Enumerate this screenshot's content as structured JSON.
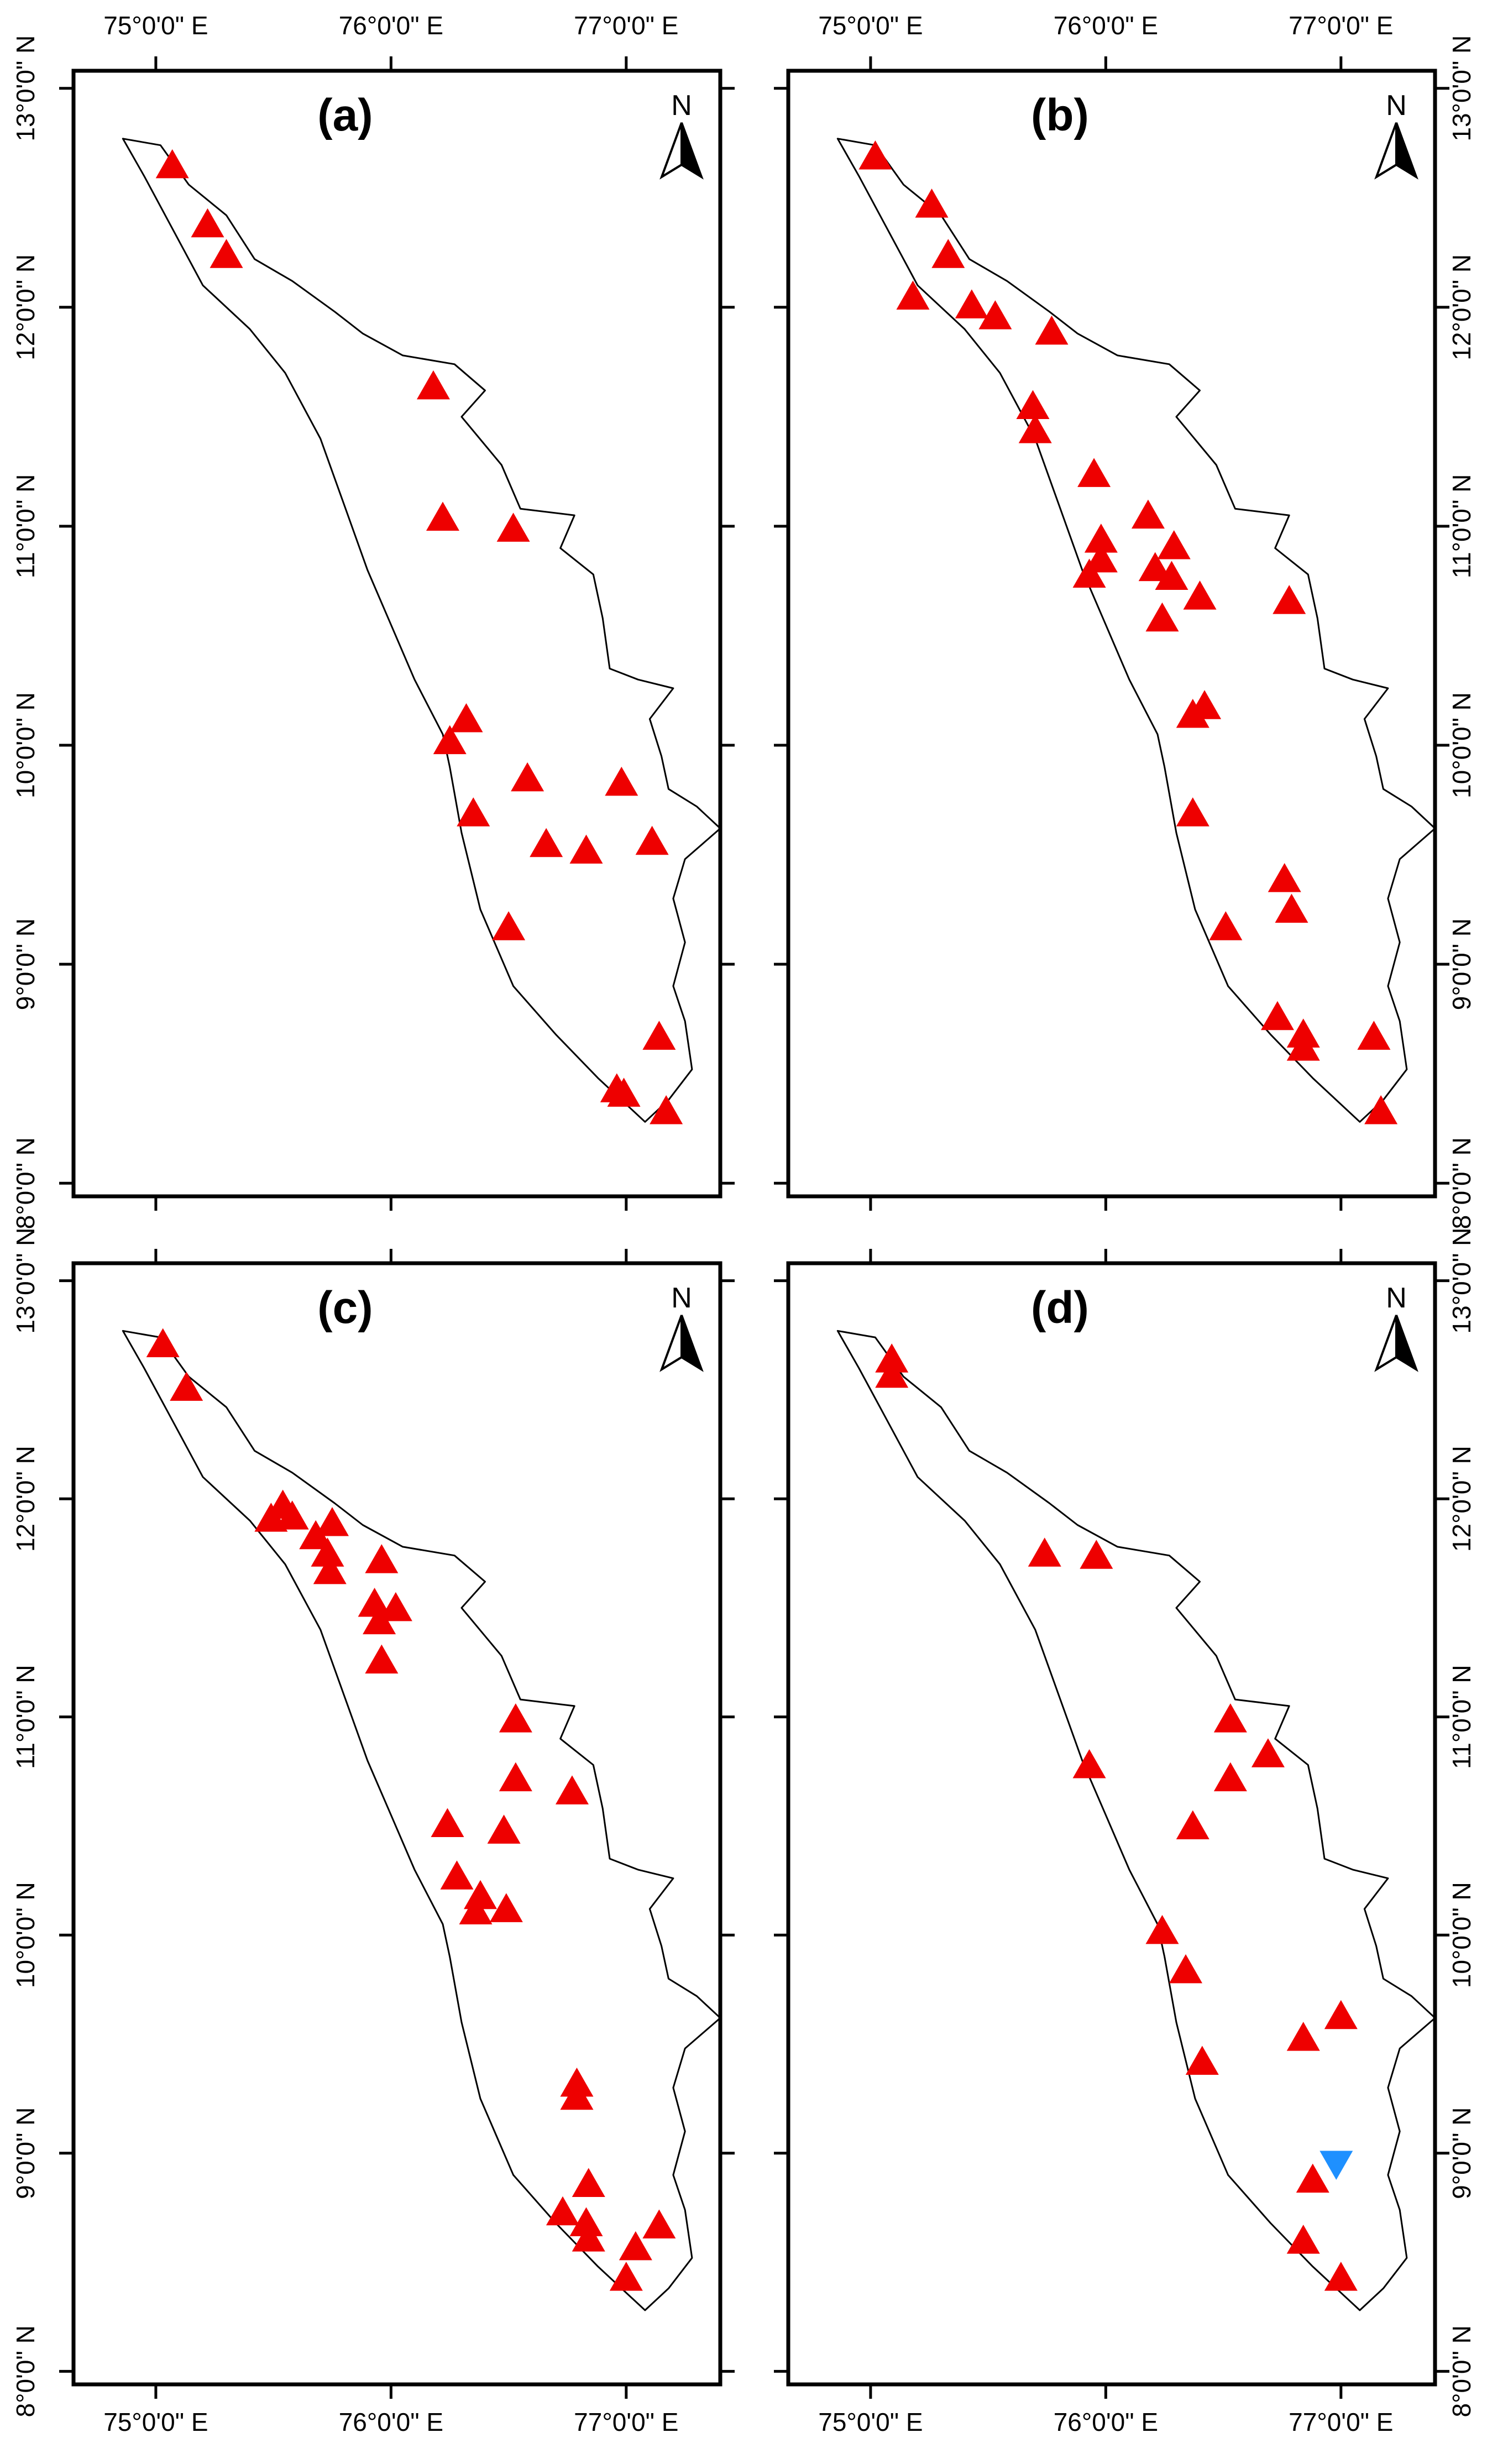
{
  "colors": {
    "trend_up": "#ee0000",
    "trend_down": "#1e90ff",
    "outline": "#000000",
    "background": "#ffffff"
  },
  "north_arrow": {
    "letter": "N",
    "icon": "north-arrow-icon"
  },
  "axes": {
    "x_ticks": [
      {
        "value": 75,
        "label": "75°0'0\" E"
      },
      {
        "value": 76,
        "label": "76°0'0\" E"
      },
      {
        "value": 77,
        "label": "77°0'0\" E"
      }
    ],
    "y_ticks": [
      {
        "value": 8,
        "label": "8°0'0\" N"
      },
      {
        "value": 9,
        "label": "9°0'0\" N"
      },
      {
        "value": 10,
        "label": "10°0'0\" N"
      },
      {
        "value": 11,
        "label": "11°0'0\" N"
      },
      {
        "value": 12,
        "label": "12°0'0\" N"
      },
      {
        "value": 13,
        "label": "13°0'0\" N"
      }
    ],
    "xlim": [
      74.65,
      77.4
    ],
    "ylim": [
      7.94,
      13.08
    ]
  },
  "boundary": {
    "name": "state-boundary-outline",
    "lonlat": [
      [
        74.86,
        12.77
      ],
      [
        75.02,
        12.74
      ],
      [
        75.14,
        12.56
      ],
      [
        75.3,
        12.42
      ],
      [
        75.42,
        12.22
      ],
      [
        75.58,
        12.12
      ],
      [
        75.76,
        11.98
      ],
      [
        75.88,
        11.88
      ],
      [
        76.05,
        11.78
      ],
      [
        76.27,
        11.74
      ],
      [
        76.4,
        11.62
      ],
      [
        76.3,
        11.5
      ],
      [
        76.47,
        11.28
      ],
      [
        76.55,
        11.08
      ],
      [
        76.78,
        11.05
      ],
      [
        76.72,
        10.9
      ],
      [
        76.86,
        10.78
      ],
      [
        76.9,
        10.58
      ],
      [
        76.93,
        10.35
      ],
      [
        77.05,
        10.3
      ],
      [
        77.2,
        10.26
      ],
      [
        77.1,
        10.12
      ],
      [
        77.15,
        9.95
      ],
      [
        77.18,
        9.8
      ],
      [
        77.3,
        9.72
      ],
      [
        77.4,
        9.62
      ],
      [
        77.25,
        9.48
      ],
      [
        77.2,
        9.3
      ],
      [
        77.25,
        9.1
      ],
      [
        77.2,
        8.9
      ],
      [
        77.25,
        8.74
      ],
      [
        77.28,
        8.52
      ],
      [
        77.18,
        8.38
      ],
      [
        77.08,
        8.28
      ],
      [
        76.88,
        8.48
      ],
      [
        76.7,
        8.68
      ],
      [
        76.52,
        8.9
      ],
      [
        76.38,
        9.25
      ],
      [
        76.3,
        9.6
      ],
      [
        76.25,
        9.9
      ],
      [
        76.22,
        10.05
      ],
      [
        76.1,
        10.3
      ],
      [
        76.0,
        10.55
      ],
      [
        75.9,
        10.8
      ],
      [
        75.8,
        11.1
      ],
      [
        75.7,
        11.4
      ],
      [
        75.55,
        11.7
      ],
      [
        75.4,
        11.9
      ],
      [
        75.2,
        12.1
      ],
      [
        75.05,
        12.4
      ],
      [
        74.95,
        12.6
      ],
      [
        74.86,
        12.77
      ]
    ]
  },
  "panels": [
    {
      "label": "(a)",
      "stations": [
        {
          "lon": 75.07,
          "lat": 12.65,
          "trend": "up"
        },
        {
          "lon": 75.22,
          "lat": 12.38,
          "trend": "up"
        },
        {
          "lon": 75.3,
          "lat": 12.24,
          "trend": "up"
        },
        {
          "lon": 76.18,
          "lat": 11.64,
          "trend": "up"
        },
        {
          "lon": 76.22,
          "lat": 11.04,
          "trend": "up"
        },
        {
          "lon": 76.52,
          "lat": 10.99,
          "trend": "up"
        },
        {
          "lon": 76.32,
          "lat": 10.12,
          "trend": "up"
        },
        {
          "lon": 76.25,
          "lat": 10.02,
          "trend": "up"
        },
        {
          "lon": 76.58,
          "lat": 9.85,
          "trend": "up"
        },
        {
          "lon": 76.98,
          "lat": 9.83,
          "trend": "up"
        },
        {
          "lon": 76.35,
          "lat": 9.69,
          "trend": "up"
        },
        {
          "lon": 76.66,
          "lat": 9.55,
          "trend": "up"
        },
        {
          "lon": 76.83,
          "lat": 9.52,
          "trend": "up"
        },
        {
          "lon": 77.11,
          "lat": 9.56,
          "trend": "up"
        },
        {
          "lon": 76.5,
          "lat": 9.17,
          "trend": "up"
        },
        {
          "lon": 77.14,
          "lat": 8.67,
          "trend": "up"
        },
        {
          "lon": 76.96,
          "lat": 8.43,
          "trend": "up"
        },
        {
          "lon": 76.99,
          "lat": 8.41,
          "trend": "up"
        },
        {
          "lon": 77.17,
          "lat": 8.33,
          "trend": "up"
        }
      ]
    },
    {
      "label": "(b)",
      "stations": [
        {
          "lon": 75.02,
          "lat": 12.69,
          "trend": "up"
        },
        {
          "lon": 75.26,
          "lat": 12.47,
          "trend": "up"
        },
        {
          "lon": 75.33,
          "lat": 12.24,
          "trend": "up"
        },
        {
          "lon": 75.18,
          "lat": 12.05,
          "trend": "up"
        },
        {
          "lon": 75.43,
          "lat": 12.01,
          "trend": "up"
        },
        {
          "lon": 75.53,
          "lat": 11.96,
          "trend": "up"
        },
        {
          "lon": 75.77,
          "lat": 11.89,
          "trend": "up"
        },
        {
          "lon": 75.69,
          "lat": 11.55,
          "trend": "up"
        },
        {
          "lon": 75.7,
          "lat": 11.44,
          "trend": "up"
        },
        {
          "lon": 75.95,
          "lat": 11.24,
          "trend": "up"
        },
        {
          "lon": 75.98,
          "lat": 10.94,
          "trend": "up"
        },
        {
          "lon": 75.98,
          "lat": 10.85,
          "trend": "up"
        },
        {
          "lon": 75.93,
          "lat": 10.78,
          "trend": "up"
        },
        {
          "lon": 76.18,
          "lat": 11.05,
          "trend": "up"
        },
        {
          "lon": 76.29,
          "lat": 10.91,
          "trend": "up"
        },
        {
          "lon": 76.21,
          "lat": 10.81,
          "trend": "up"
        },
        {
          "lon": 76.28,
          "lat": 10.77,
          "trend": "up"
        },
        {
          "lon": 76.4,
          "lat": 10.68,
          "trend": "up"
        },
        {
          "lon": 76.24,
          "lat": 10.58,
          "trend": "up"
        },
        {
          "lon": 76.78,
          "lat": 10.66,
          "trend": "up"
        },
        {
          "lon": 76.42,
          "lat": 10.18,
          "trend": "up"
        },
        {
          "lon": 76.37,
          "lat": 10.14,
          "trend": "up"
        },
        {
          "lon": 76.37,
          "lat": 9.69,
          "trend": "up"
        },
        {
          "lon": 76.76,
          "lat": 9.39,
          "trend": "up"
        },
        {
          "lon": 76.79,
          "lat": 9.25,
          "trend": "up"
        },
        {
          "lon": 76.51,
          "lat": 9.17,
          "trend": "up"
        },
        {
          "lon": 76.73,
          "lat": 8.76,
          "trend": "up"
        },
        {
          "lon": 76.84,
          "lat": 8.68,
          "trend": "up"
        },
        {
          "lon": 76.84,
          "lat": 8.62,
          "trend": "up"
        },
        {
          "lon": 77.14,
          "lat": 8.67,
          "trend": "up"
        },
        {
          "lon": 77.17,
          "lat": 8.33,
          "trend": "up"
        }
      ]
    },
    {
      "label": "(c)",
      "stations": [
        {
          "lon": 75.03,
          "lat": 12.71,
          "trend": "up"
        },
        {
          "lon": 75.13,
          "lat": 12.51,
          "trend": "up"
        },
        {
          "lon": 75.49,
          "lat": 11.91,
          "trend": "up"
        },
        {
          "lon": 75.54,
          "lat": 11.97,
          "trend": "up"
        },
        {
          "lon": 75.58,
          "lat": 11.92,
          "trend": "up"
        },
        {
          "lon": 75.68,
          "lat": 11.83,
          "trend": "up"
        },
        {
          "lon": 75.75,
          "lat": 11.89,
          "trend": "up"
        },
        {
          "lon": 75.73,
          "lat": 11.75,
          "trend": "up"
        },
        {
          "lon": 75.74,
          "lat": 11.67,
          "trend": "up"
        },
        {
          "lon": 75.96,
          "lat": 11.72,
          "trend": "up"
        },
        {
          "lon": 75.93,
          "lat": 11.52,
          "trend": "up"
        },
        {
          "lon": 76.02,
          "lat": 11.5,
          "trend": "up"
        },
        {
          "lon": 75.95,
          "lat": 11.44,
          "trend": "up"
        },
        {
          "lon": 75.96,
          "lat": 11.26,
          "trend": "up"
        },
        {
          "lon": 76.53,
          "lat": 10.99,
          "trend": "up"
        },
        {
          "lon": 76.53,
          "lat": 10.72,
          "trend": "up"
        },
        {
          "lon": 76.77,
          "lat": 10.66,
          "trend": "up"
        },
        {
          "lon": 76.24,
          "lat": 10.51,
          "trend": "up"
        },
        {
          "lon": 76.48,
          "lat": 10.48,
          "trend": "up"
        },
        {
          "lon": 76.28,
          "lat": 10.27,
          "trend": "up"
        },
        {
          "lon": 76.38,
          "lat": 10.18,
          "trend": "up"
        },
        {
          "lon": 76.36,
          "lat": 10.11,
          "trend": "up"
        },
        {
          "lon": 76.49,
          "lat": 10.12,
          "trend": "up"
        },
        {
          "lon": 76.79,
          "lat": 9.32,
          "trend": "up"
        },
        {
          "lon": 76.79,
          "lat": 9.26,
          "trend": "up"
        },
        {
          "lon": 76.84,
          "lat": 8.86,
          "trend": "up"
        },
        {
          "lon": 76.73,
          "lat": 8.73,
          "trend": "up"
        },
        {
          "lon": 76.83,
          "lat": 8.68,
          "trend": "up"
        },
        {
          "lon": 76.84,
          "lat": 8.61,
          "trend": "up"
        },
        {
          "lon": 77.04,
          "lat": 8.57,
          "trend": "up"
        },
        {
          "lon": 77.14,
          "lat": 8.67,
          "trend": "up"
        },
        {
          "lon": 77.0,
          "lat": 8.43,
          "trend": "up"
        }
      ]
    },
    {
      "label": "(d)",
      "stations": [
        {
          "lon": 75.09,
          "lat": 12.64,
          "trend": "up"
        },
        {
          "lon": 75.09,
          "lat": 12.57,
          "trend": "up"
        },
        {
          "lon": 75.74,
          "lat": 11.75,
          "trend": "up"
        },
        {
          "lon": 75.96,
          "lat": 11.74,
          "trend": "up"
        },
        {
          "lon": 76.53,
          "lat": 10.99,
          "trend": "up"
        },
        {
          "lon": 76.69,
          "lat": 10.83,
          "trend": "up"
        },
        {
          "lon": 76.53,
          "lat": 10.72,
          "trend": "up"
        },
        {
          "lon": 75.93,
          "lat": 10.78,
          "trend": "up"
        },
        {
          "lon": 76.37,
          "lat": 10.5,
          "trend": "up"
        },
        {
          "lon": 76.24,
          "lat": 10.02,
          "trend": "up"
        },
        {
          "lon": 76.34,
          "lat": 9.84,
          "trend": "up"
        },
        {
          "lon": 77.0,
          "lat": 9.63,
          "trend": "up"
        },
        {
          "lon": 76.84,
          "lat": 9.53,
          "trend": "up"
        },
        {
          "lon": 76.41,
          "lat": 9.42,
          "trend": "up"
        },
        {
          "lon": 76.98,
          "lat": 8.95,
          "trend": "down"
        },
        {
          "lon": 76.88,
          "lat": 8.88,
          "trend": "up"
        },
        {
          "lon": 76.84,
          "lat": 8.6,
          "trend": "up"
        },
        {
          "lon": 77.0,
          "lat": 8.43,
          "trend": "up"
        }
      ]
    }
  ]
}
